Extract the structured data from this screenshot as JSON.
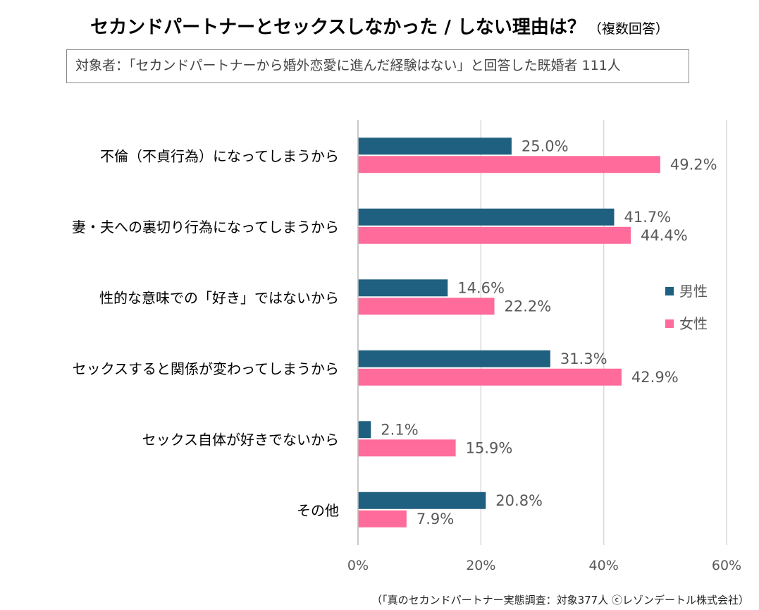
{
  "header": {
    "title": "セカンドパートナーとセックスしなかった / しない理由は？",
    "title_note": "（複数回答）",
    "subject": "対象者：「セカンドパートナーから婚外恋愛に進んだ経験はない」と回答した既婚者 111人"
  },
  "footer": {
    "source": "（「真のセカンドパートナー実態調査：対象377人 ⓒレゾンデートル株式会社）"
  },
  "chart_data": {
    "type": "bar",
    "orientation": "horizontal",
    "categories": [
      "不倫（不貞行為）になってしまうから",
      "妻・夫への裏切り行為になってしまうから",
      "性的な意味での「好き」ではないから",
      "セックスすると関係が変わってしまうから",
      "セックス自体が好きでないから",
      "その他"
    ],
    "series": [
      {
        "name": "男性",
        "color": "#1f5f7f",
        "values": [
          25.0,
          41.7,
          14.6,
          31.3,
          2.1,
          20.8
        ]
      },
      {
        "name": "女性",
        "color": "#ff6b9a",
        "values": [
          49.2,
          44.4,
          22.2,
          42.9,
          15.9,
          7.9
        ]
      }
    ],
    "xlim": [
      0,
      60
    ],
    "xticks": [
      "0%",
      "20%",
      "40%",
      "60%"
    ],
    "value_suffix": "%",
    "grid": true,
    "legend_position": "right"
  }
}
